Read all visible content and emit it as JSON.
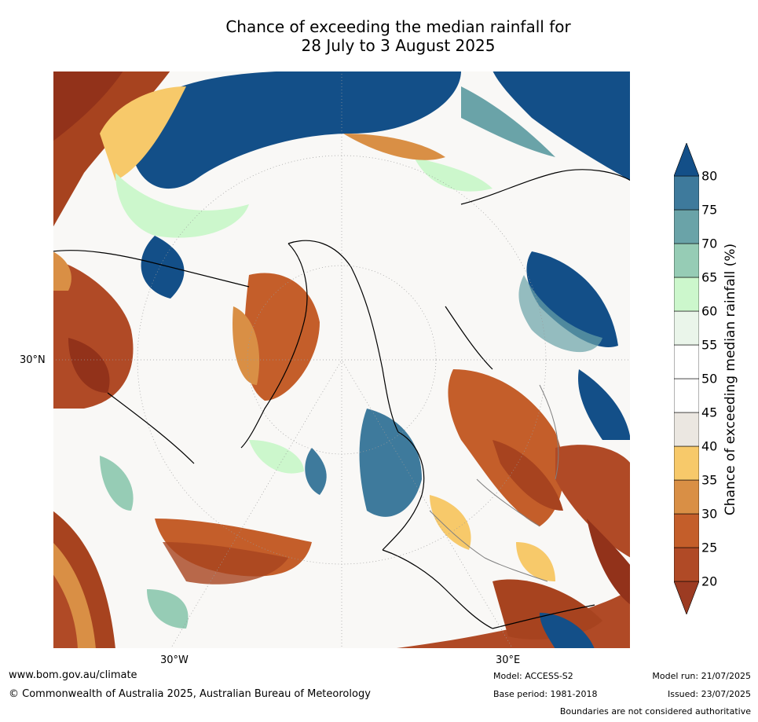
{
  "title_line1": "Chance of exceeding the median rainfall for",
  "title_line2": "28 July to 3 August 2025",
  "map": {
    "lat_label": "30°N",
    "lon_label_west": "30°W",
    "lon_label_east": "30°E"
  },
  "colorbar": {
    "label": "Chance of exceeding median rainfall (%)",
    "ticks": [
      "20",
      "25",
      "30",
      "35",
      "40",
      "45",
      "50",
      "55",
      "60",
      "65",
      "70",
      "75",
      "80"
    ],
    "colors": [
      "#9c3b22",
      "#b04a26",
      "#c45e2a",
      "#d98f45",
      "#f7c96a",
      "#ebe7e1",
      "#ffffff",
      "#ffffff",
      "#eaf5ea",
      "#ccf7cc",
      "#96ccb5",
      "#6aa3a8",
      "#3e7a9c",
      "#134f88"
    ]
  },
  "footer": {
    "url": "www.bom.gov.au/climate",
    "copyright": "© Commonwealth of Australia 2025, Australian Bureau of Meteorology",
    "model": "Model: ACCESS-S2",
    "base_period": "Base period: 1981-2018",
    "model_run": "Model run: 21/07/2025",
    "issued": "Issued: 23/07/2025",
    "boundaries": "Boundaries are not considered authoritative"
  }
}
